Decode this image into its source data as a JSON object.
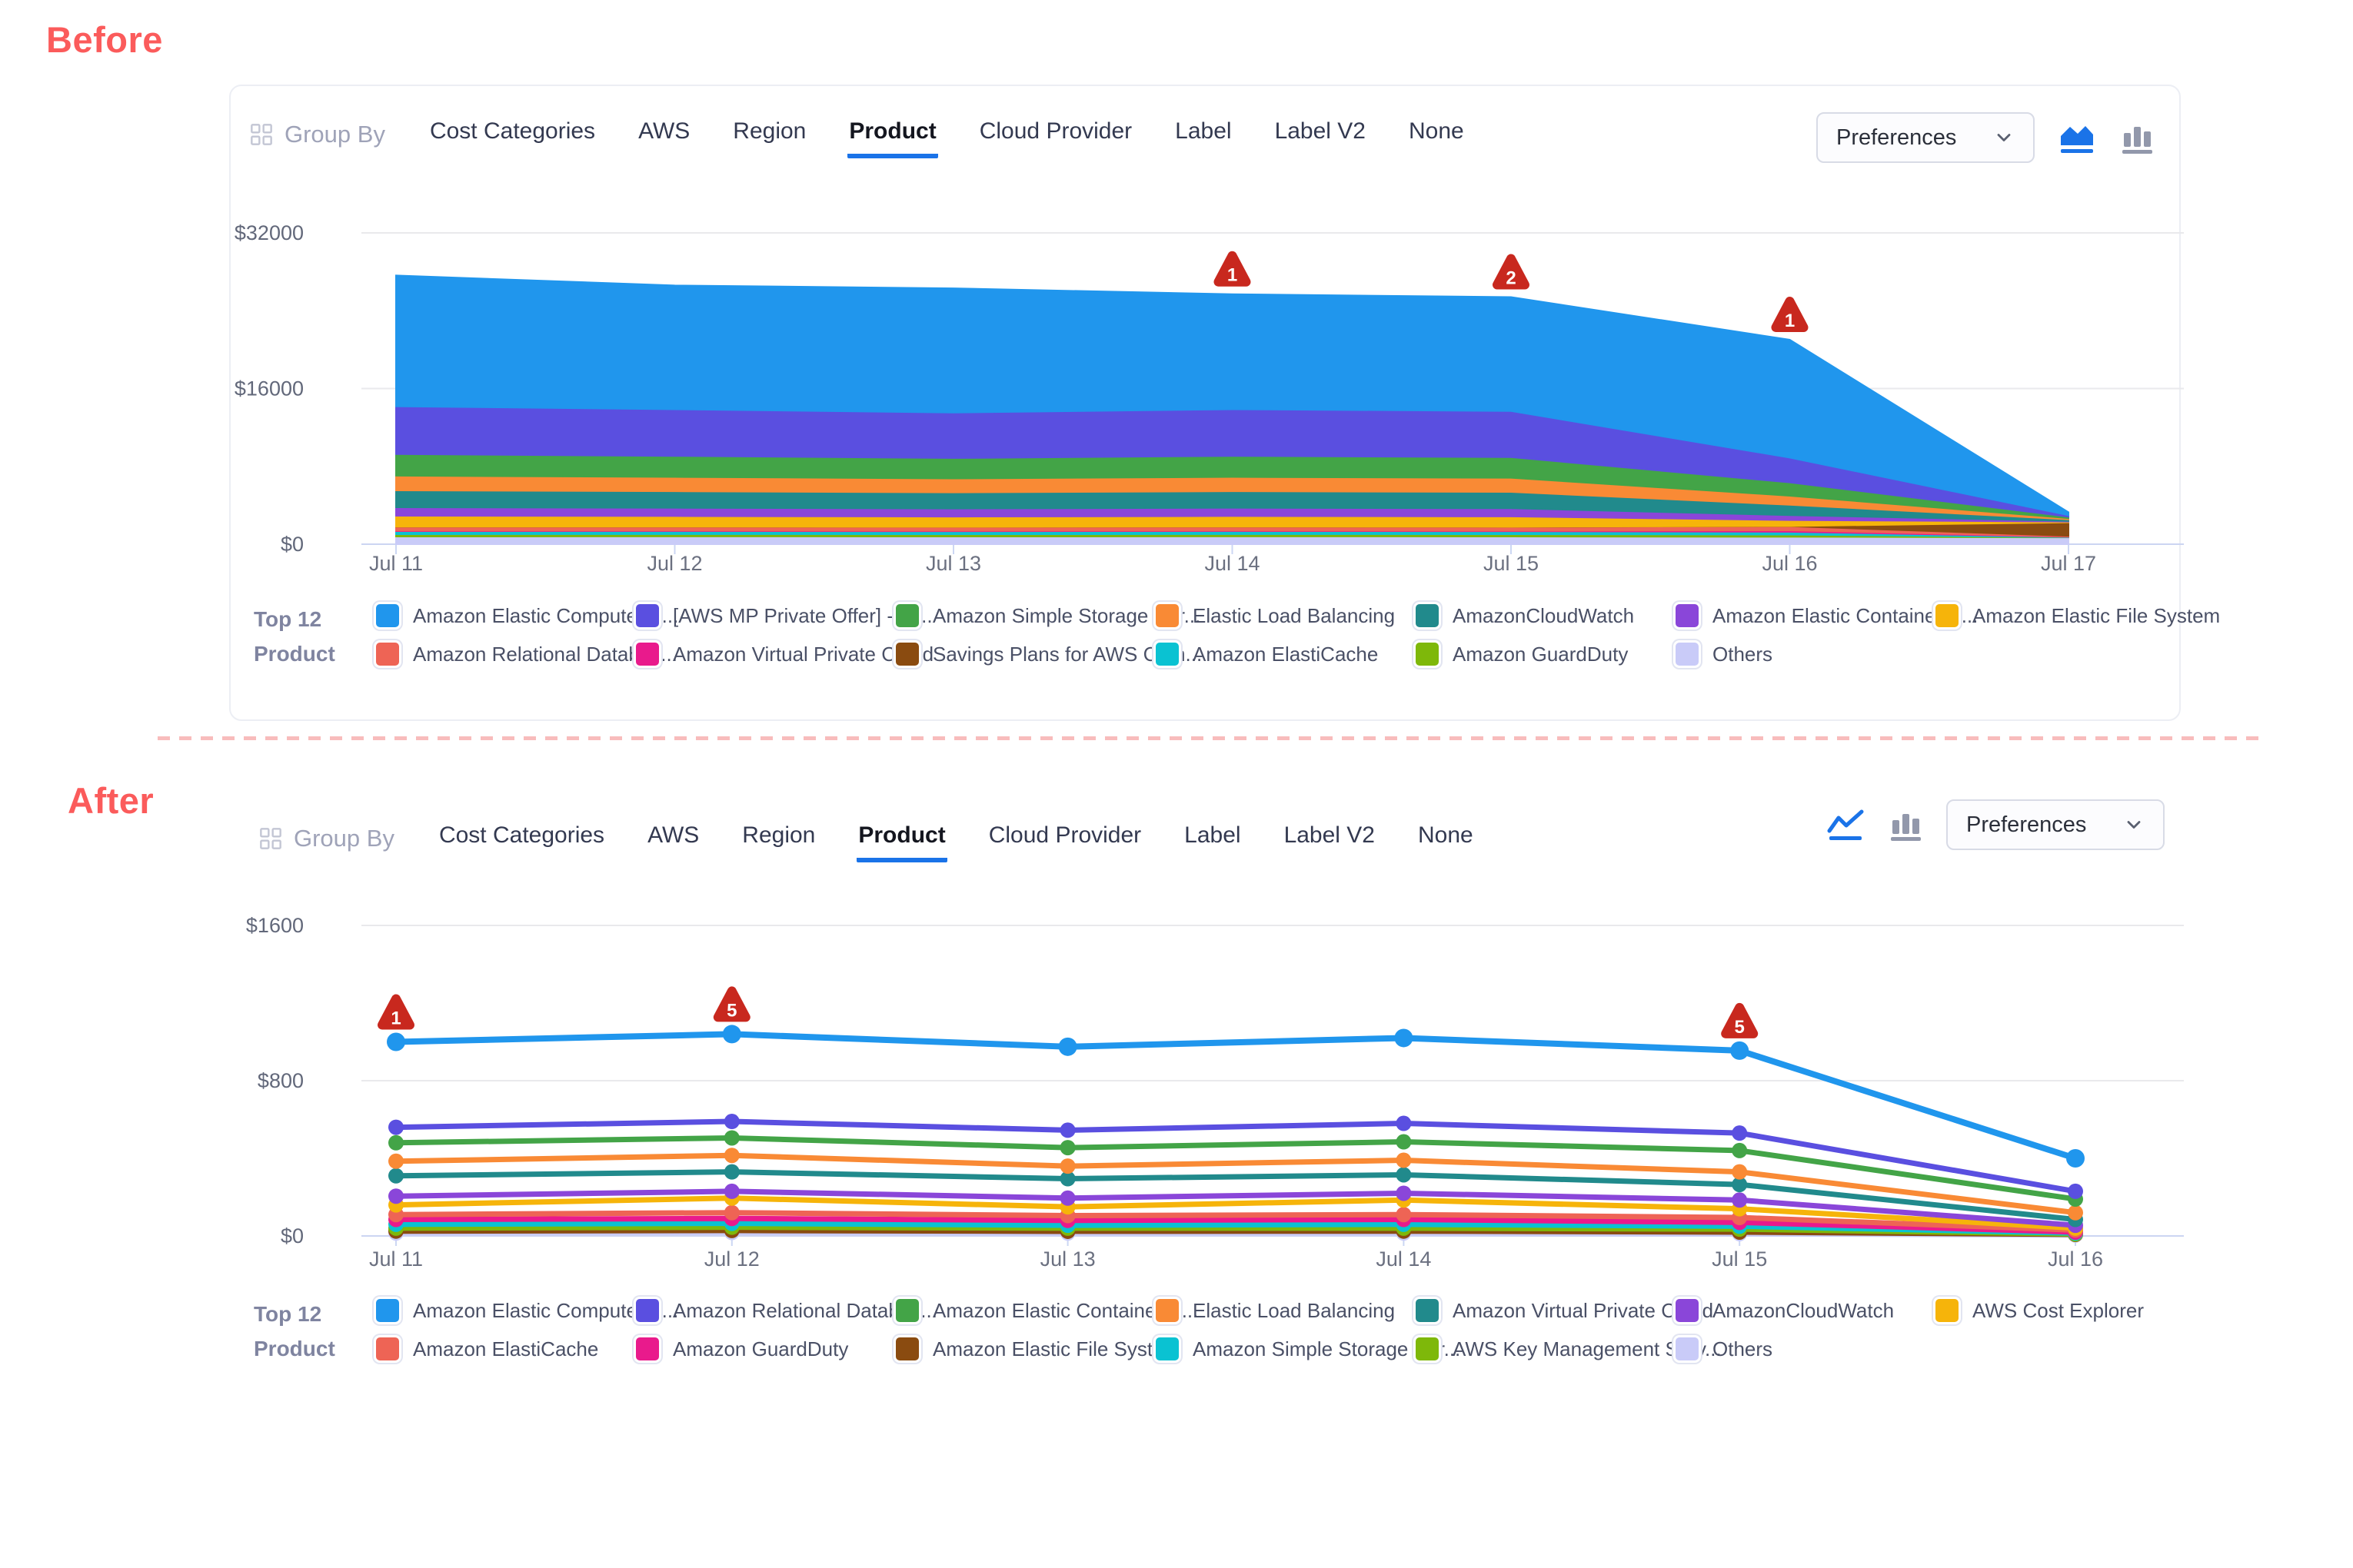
{
  "labels": {
    "before": "Before",
    "after": "After"
  },
  "toolbar": {
    "group_by_label": "Group By",
    "group_by_icon": "grid-icon",
    "tabs": [
      "Cost Categories",
      "AWS",
      "Region",
      "Product",
      "Cloud Provider",
      "Label",
      "Label V2",
      "None"
    ],
    "active_tab": "Product",
    "preferences_label": "Preferences",
    "preferences_icon": "chevron-down-icon",
    "accent_color": "#1a73e8"
  },
  "controls": {
    "before_chart_type_icons": [
      {
        "name": "area-chart-icon",
        "active": true
      },
      {
        "name": "bar-chart-icon",
        "active": false
      }
    ],
    "after_chart_type_icons": [
      {
        "name": "line-chart-icon",
        "active": true
      },
      {
        "name": "bar-chart-icon",
        "active": false
      }
    ]
  },
  "badge_color": "#C8281E",
  "chart_data": [
    {
      "id": "before",
      "type": "area",
      "stacked": true,
      "legend_title_line1": "Top 12",
      "legend_title_line2": "Product",
      "x": [
        "Jul 11",
        "Jul 12",
        "Jul 13",
        "Jul 14",
        "Jul 15",
        "Jul 16",
        "Jul 17"
      ],
      "ylim": [
        0,
        32000
      ],
      "yticks": [
        {
          "label": "$0",
          "value": 0
        },
        {
          "label": "$16000",
          "value": 16000
        },
        {
          "label": "$32000",
          "value": 32000
        }
      ],
      "grid": true,
      "series": [
        {
          "name": "Others",
          "color": "#C9CBF8",
          "values": [
            790,
            800,
            790,
            800,
            790,
            760,
            700
          ]
        },
        {
          "name": "Amazon GuardDuty",
          "color": "#7EB80A",
          "values": [
            240,
            240,
            235,
            240,
            235,
            225,
            25
          ]
        },
        {
          "name": "Amazon ElastiCache",
          "color": "#0AC2D2",
          "values": [
            315,
            310,
            305,
            310,
            305,
            290,
            35
          ]
        },
        {
          "name": "Amazon Virtual Private Cloud",
          "color": "#E91A8C",
          "values": [
            60,
            60,
            60,
            60,
            60,
            150,
            30
          ]
        },
        {
          "name": "Amazon Relational Databas...",
          "color": "#EE6455",
          "values": [
            395,
            390,
            385,
            390,
            390,
            420,
            70
          ]
        },
        {
          "name": "Savings Plans for AWS Com...",
          "color": "#8A4B10",
          "values": [
            10,
            10,
            10,
            10,
            10,
            15,
            1380
          ]
        },
        {
          "name": "Amazon Elastic File System",
          "color": "#F6B40A",
          "values": [
            1110,
            1080,
            1050,
            1080,
            1060,
            620,
            85
          ]
        },
        {
          "name": "Amazon Elastic Container S...",
          "color": "#8A46D9",
          "values": [
            870,
            850,
            830,
            850,
            840,
            500,
            70
          ]
        },
        {
          "name": "AmazonCloudWatch",
          "color": "#218A8C",
          "values": [
            1745,
            1700,
            1660,
            1700,
            1680,
            1070,
            160
          ]
        },
        {
          "name": "Elastic Load Balancing",
          "color": "#F98A35",
          "values": [
            1505,
            1470,
            1430,
            1470,
            1450,
            930,
            120
          ]
        },
        {
          "name": "Amazon Simple Storage Ser...",
          "color": "#43A447",
          "values": [
            2220,
            2160,
            2100,
            2160,
            2130,
            1370,
            150
          ]
        },
        {
          "name": "[AWS MP Private Offer] - M...",
          "color": "#5A4FE0",
          "values": [
            4910,
            4800,
            4680,
            4800,
            4740,
            2550,
            160
          ]
        },
        {
          "name": "Amazon Elastic Compute Cl...",
          "color": "#2096ED",
          "values": [
            13450,
            12730,
            12765,
            11830,
            11710,
            12120,
            300
          ]
        }
      ],
      "annotations": [
        {
          "x": "Jul 14",
          "label": "1"
        },
        {
          "x": "Jul 15",
          "label": "2"
        },
        {
          "x": "Jul 16",
          "label": "1"
        }
      ],
      "legend_rows": [
        [
          {
            "label": "Amazon Elastic Compute Cl...",
            "color": "#2096ED"
          },
          {
            "label": "[AWS MP Private Offer] - M...",
            "color": "#5A4FE0"
          },
          {
            "label": "Amazon Simple Storage Ser...",
            "color": "#43A447"
          },
          {
            "label": "Elastic Load Balancing",
            "color": "#F98A35"
          },
          {
            "label": "AmazonCloudWatch",
            "color": "#218A8C"
          },
          {
            "label": "Amazon Elastic Container S...",
            "color": "#8A46D9"
          },
          {
            "label": "Amazon Elastic File System",
            "color": "#F6B40A"
          }
        ],
        [
          {
            "label": "Amazon Relational Databas...",
            "color": "#EE6455"
          },
          {
            "label": "Amazon Virtual Private Cloud",
            "color": "#E91A8C"
          },
          {
            "label": "Savings Plans for AWS Com...",
            "color": "#8A4B10"
          },
          {
            "label": "Amazon ElastiCache",
            "color": "#0AC2D2"
          },
          {
            "label": "Amazon GuardDuty",
            "color": "#7EB80A"
          },
          {
            "label": "Others",
            "color": "#C9CBF8"
          }
        ]
      ]
    },
    {
      "id": "after",
      "type": "line",
      "stacked": false,
      "legend_title_line1": "Top 12",
      "legend_title_line2": "Product",
      "x": [
        "Jul 11",
        "Jul 12",
        "Jul 13",
        "Jul 14",
        "Jul 15",
        "Jul 16"
      ],
      "ylim": [
        0,
        1600
      ],
      "yticks": [
        {
          "label": "$0",
          "value": 0
        },
        {
          "label": "$800",
          "value": 800
        },
        {
          "label": "$1600",
          "value": 1600
        }
      ],
      "grid": true,
      "series": [
        {
          "name": "Amazon Elastic Compute Cl...",
          "color": "#2096ED",
          "values": [
            1000,
            1040,
            975,
            1020,
            955,
            400
          ]
        },
        {
          "name": "Amazon Relational Databas...",
          "color": "#5A4FE0",
          "values": [
            560,
            590,
            545,
            580,
            530,
            230
          ]
        },
        {
          "name": "Amazon Elastic Container S...",
          "color": "#43A447",
          "values": [
            480,
            505,
            455,
            485,
            440,
            190
          ]
        },
        {
          "name": "Elastic Load Balancing",
          "color": "#F98A35",
          "values": [
            385,
            415,
            360,
            390,
            330,
            120
          ]
        },
        {
          "name": "Amazon Virtual Private Cloud",
          "color": "#218A8C",
          "values": [
            310,
            330,
            295,
            315,
            265,
            85
          ]
        },
        {
          "name": "AmazonCloudWatch",
          "color": "#8A46D9",
          "values": [
            205,
            230,
            195,
            220,
            185,
            55
          ]
        },
        {
          "name": "AWS Cost Explorer",
          "color": "#F6B40A",
          "values": [
            160,
            195,
            150,
            185,
            140,
            40
          ]
        },
        {
          "name": "Amazon ElastiCache",
          "color": "#EE6455",
          "values": [
            110,
            120,
            105,
            110,
            95,
            30
          ]
        },
        {
          "name": "Amazon GuardDuty",
          "color": "#E91A8C",
          "values": [
            85,
            90,
            80,
            85,
            70,
            20
          ]
        },
        {
          "name": "Amazon Simple Storage Ser...",
          "color": "#0AC2D2",
          "values": [
            60,
            65,
            55,
            60,
            50,
            15
          ]
        },
        {
          "name": "AWS Key Management Serv...",
          "color": "#7EB80A",
          "values": [
            40,
            45,
            40,
            40,
            35,
            10
          ]
        },
        {
          "name": "Amazon Elastic File System",
          "color": "#8A4B10",
          "values": [
            25,
            28,
            24,
            25,
            20,
            8
          ]
        },
        {
          "name": "Others",
          "color": "#C9CBF8",
          "values": [
            15,
            18,
            15,
            15,
            12,
            5
          ]
        }
      ],
      "annotations": [
        {
          "x": "Jul 11",
          "label": "1"
        },
        {
          "x": "Jul 12",
          "label": "5"
        },
        {
          "x": "Jul 15",
          "label": "5"
        }
      ],
      "legend_rows": [
        [
          {
            "label": "Amazon Elastic Compute Cl...",
            "color": "#2096ED"
          },
          {
            "label": "Amazon Relational Databas...",
            "color": "#5A4FE0"
          },
          {
            "label": "Amazon Elastic Container S...",
            "color": "#43A447"
          },
          {
            "label": "Elastic Load Balancing",
            "color": "#F98A35"
          },
          {
            "label": "Amazon Virtual Private Cloud",
            "color": "#218A8C"
          },
          {
            "label": "AmazonCloudWatch",
            "color": "#8A46D9"
          },
          {
            "label": "AWS Cost Explorer",
            "color": "#F6B40A"
          }
        ],
        [
          {
            "label": "Amazon ElastiCache",
            "color": "#EE6455"
          },
          {
            "label": "Amazon GuardDuty",
            "color": "#E91A8C"
          },
          {
            "label": "Amazon Elastic File System",
            "color": "#8A4B10"
          },
          {
            "label": "Amazon Simple Storage Ser...",
            "color": "#0AC2D2"
          },
          {
            "label": "AWS Key Management Serv...",
            "color": "#7EB80A"
          },
          {
            "label": "Others",
            "color": "#C9CBF8"
          }
        ]
      ]
    }
  ]
}
